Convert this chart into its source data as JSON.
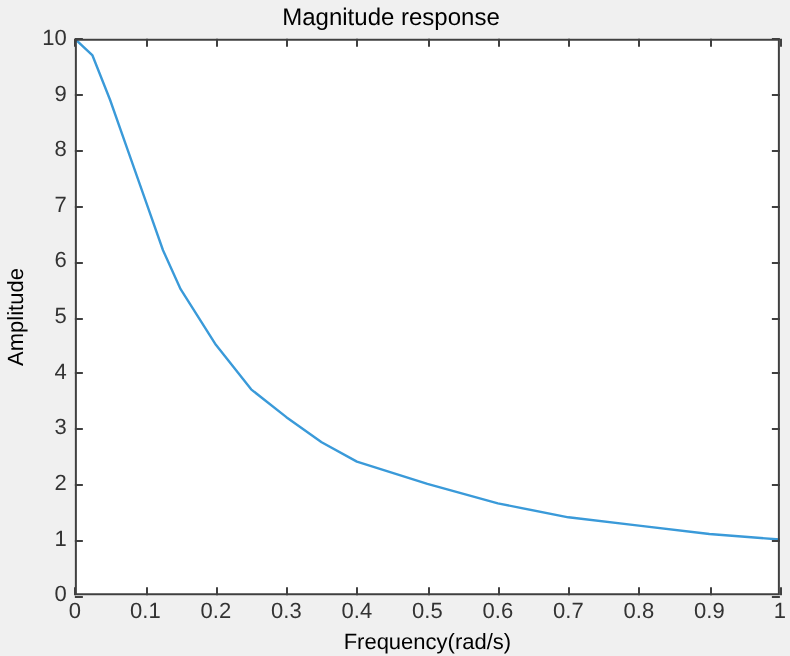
{
  "chart_data": {
    "type": "line",
    "title": "Magnitude response",
    "xlabel": "Frequency(rad/s)",
    "ylabel": "Amplitude",
    "x": [
      0,
      0.025,
      0.05,
      0.075,
      0.1,
      0.125,
      0.15,
      0.2,
      0.25,
      0.3,
      0.35,
      0.4,
      0.5,
      0.6,
      0.7,
      0.8,
      0.9,
      1
    ],
    "series": [
      {
        "color": "#3a9ad9",
        "values": [
          10,
          9.7,
          8.9,
          8.0,
          7.1,
          6.2,
          5.5,
          4.5,
          3.7,
          3.2,
          2.75,
          2.4,
          2.0,
          1.65,
          1.4,
          1.25,
          1.1,
          1.0
        ]
      }
    ],
    "xlim": [
      0,
      1
    ],
    "xticks": [
      0,
      0.1,
      0.2,
      0.3,
      0.4,
      0.5,
      0.6,
      0.7,
      0.8,
      0.9,
      1
    ],
    "ylim": [
      0,
      10
    ],
    "yticks": [
      0,
      1,
      2,
      3,
      4,
      5,
      6,
      7,
      8,
      9,
      10
    ],
    "grid": false,
    "legend": false,
    "marker": "none",
    "line_style": "solid"
  }
}
